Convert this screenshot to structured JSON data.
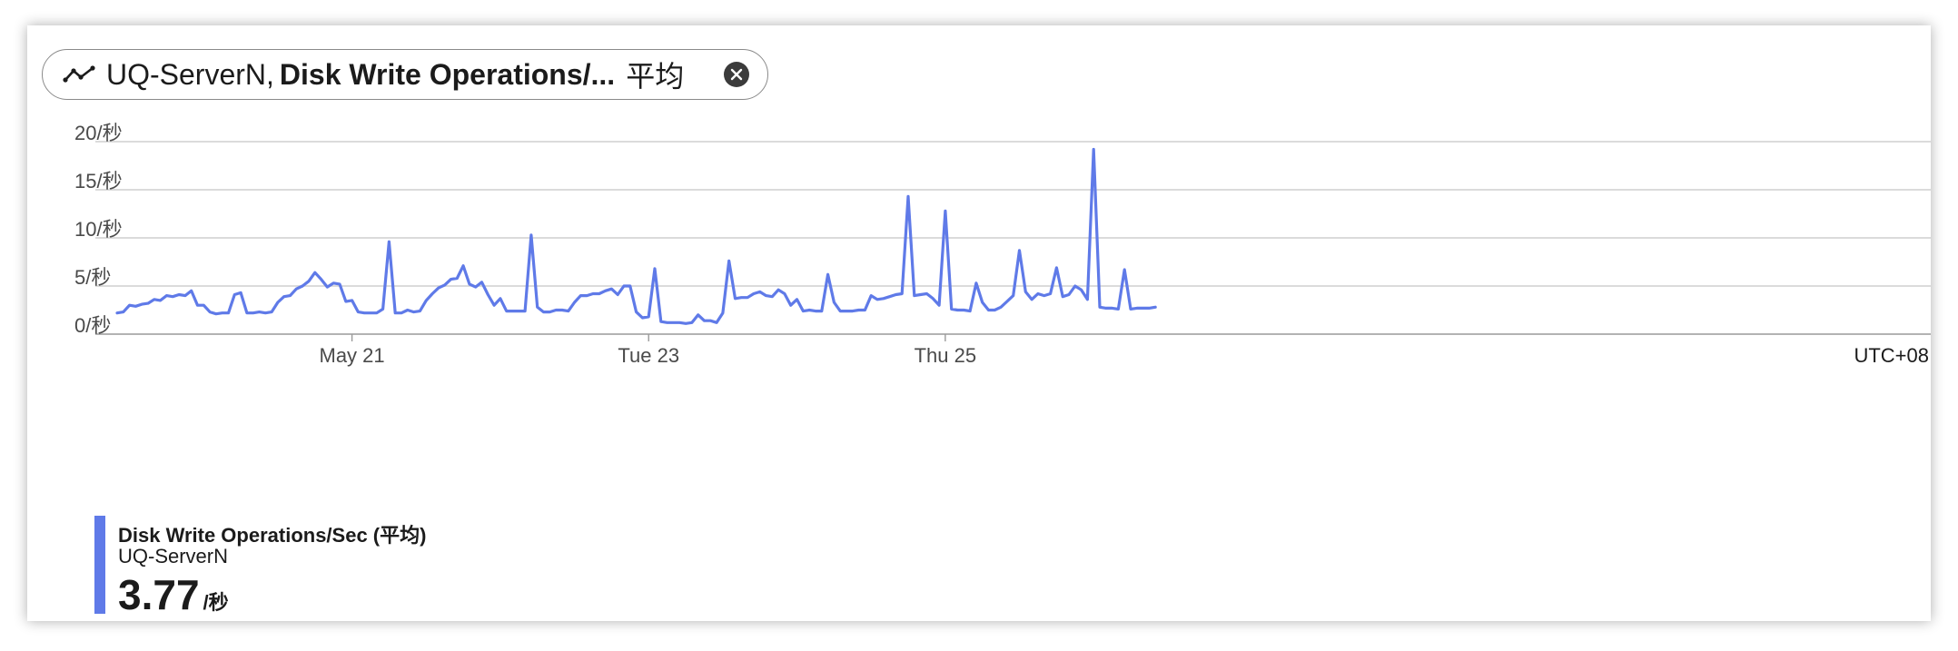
{
  "header": {
    "resource": "UQ-ServerN",
    "separator": ",",
    "metric": "Disk Write Operations/...",
    "aggregation": "平均"
  },
  "legend": {
    "title": "Disk Write Operations/Sec (平均)",
    "resource": "UQ-ServerN",
    "value": "3.77",
    "unit": "/秒",
    "color": "#5f7ae8"
  },
  "chart_data": {
    "type": "line",
    "x_unit": "hours since series start",
    "ylim": [
      0,
      20
    ],
    "y_ticks": [
      {
        "value": 0,
        "label": "0/秒"
      },
      {
        "value": 5,
        "label": "5/秒"
      },
      {
        "value": 10,
        "label": "10/秒"
      },
      {
        "value": 15,
        "label": "15/秒"
      },
      {
        "value": 20,
        "label": "20/秒"
      }
    ],
    "x_ticks": [
      {
        "label": "May 21",
        "x": 38
      },
      {
        "label": "Tue 23",
        "x": 86
      },
      {
        "label": "Thu 25",
        "x": 134
      }
    ],
    "timezone": "UTC+08",
    "grid": true,
    "series": [
      {
        "color": "#5f7ae8",
        "values": [
          2.2,
          2.3,
          3.0,
          2.9,
          3.1,
          3.2,
          3.6,
          3.5,
          4.0,
          3.9,
          4.1,
          4.0,
          4.5,
          3.0,
          3.0,
          2.3,
          2.1,
          2.2,
          2.2,
          4.1,
          4.3,
          2.2,
          2.2,
          2.3,
          2.2,
          2.3,
          3.3,
          3.9,
          4.0,
          4.7,
          5.0,
          5.5,
          6.4,
          5.7,
          4.9,
          5.3,
          5.2,
          3.4,
          3.5,
          2.3,
          2.2,
          2.2,
          2.2,
          2.6,
          9.6,
          2.2,
          2.2,
          2.5,
          2.3,
          2.4,
          3.5,
          4.2,
          4.8,
          5.1,
          5.7,
          5.8,
          7.1,
          5.2,
          4.9,
          5.4,
          4.1,
          3.0,
          3.7,
          2.4,
          2.4,
          2.4,
          2.4,
          10.3,
          2.8,
          2.3,
          2.3,
          2.5,
          2.5,
          2.4,
          3.3,
          4.0,
          4.0,
          4.2,
          4.2,
          4.5,
          4.7,
          4.1,
          5.0,
          5.0,
          2.3,
          1.7,
          1.8,
          6.8,
          1.3,
          1.2,
          1.2,
          1.2,
          1.1,
          1.2,
          2.0,
          1.4,
          1.4,
          1.2,
          2.2,
          7.6,
          3.7,
          3.8,
          3.8,
          4.2,
          4.4,
          4.0,
          3.9,
          4.6,
          4.2,
          3.0,
          3.6,
          2.4,
          2.5,
          2.4,
          2.4,
          6.2,
          3.3,
          2.4,
          2.4,
          2.4,
          2.5,
          2.5,
          4.0,
          3.6,
          3.7,
          3.9,
          4.1,
          4.2,
          14.3,
          4.0,
          4.1,
          4.2,
          3.7,
          3.0,
          12.8,
          2.6,
          2.5,
          2.5,
          2.4,
          5.3,
          3.3,
          2.5,
          2.5,
          2.8,
          3.4,
          4.0,
          8.7,
          4.4,
          3.6,
          4.2,
          4.0,
          4.2,
          6.9,
          3.9,
          4.1,
          5.0,
          4.6,
          3.6,
          19.2,
          2.8,
          2.7,
          2.7,
          2.6,
          6.7,
          2.6,
          2.7,
          2.7,
          2.7,
          2.8
        ]
      }
    ]
  }
}
